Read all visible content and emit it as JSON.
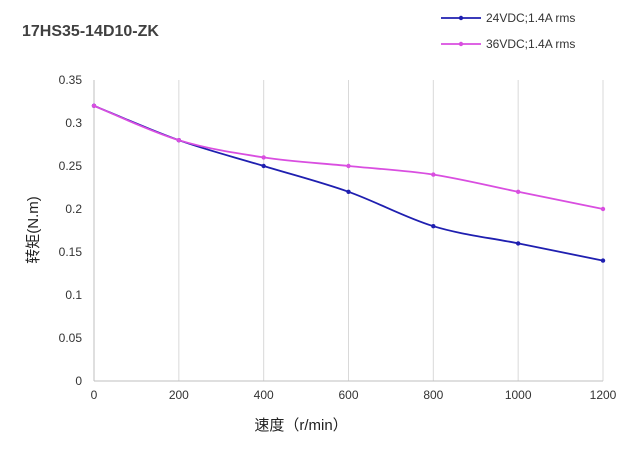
{
  "chart_data": {
    "type": "line",
    "title": "17HS35-14D10-ZK",
    "xlabel": "速度（r/min）",
    "ylabel": "转矩(N.m)",
    "x": [
      0,
      200,
      400,
      600,
      800,
      1000,
      1200
    ],
    "xlim": [
      0,
      1200
    ],
    "ylim": [
      0,
      0.35
    ],
    "x_ticks": [
      "0",
      "200",
      "400",
      "600",
      "800",
      "1000",
      "1200"
    ],
    "y_ticks": [
      "0",
      "0.05",
      "0.1",
      "0.15",
      "0.2",
      "0.25",
      "0.3",
      "0.35"
    ],
    "grid": "vertical",
    "legend_position": "top-right",
    "series": [
      {
        "name": "24VDC;1.4A rms",
        "color": "#1f1fb0",
        "values": [
          0.32,
          0.28,
          0.25,
          0.22,
          0.18,
          0.16,
          0.14
        ]
      },
      {
        "name": "36VDC;1.4A rms",
        "color": "#d94ee0",
        "values": [
          0.32,
          0.28,
          0.26,
          0.25,
          0.24,
          0.22,
          0.2
        ]
      }
    ]
  }
}
